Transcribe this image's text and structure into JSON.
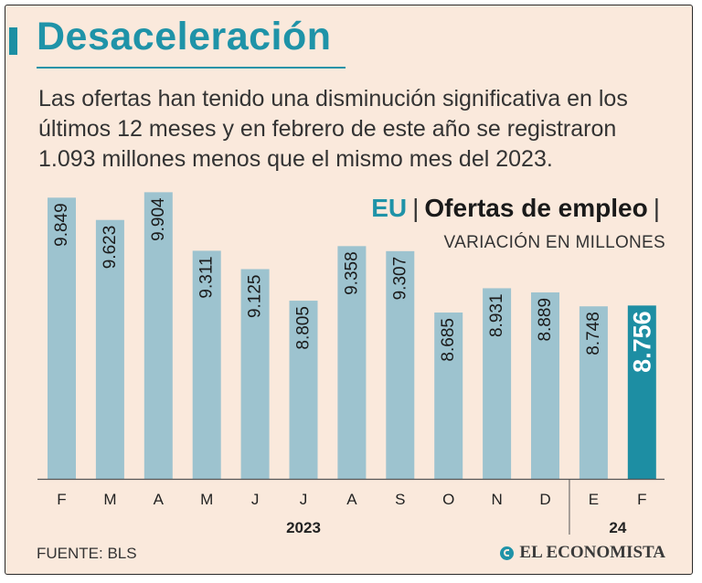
{
  "title": "Desaceleración",
  "intro": "Las ofertas han tenido una disminución significativa en los últimos 12 meses y en febrero de este año se registraron 1.093 millones menos que el mismo mes del 2023.",
  "header": {
    "region": "EU",
    "sep": "|",
    "label": "Ofertas de empleo",
    "trail": "|"
  },
  "subtitle": "VARIACIÓN EN MILLONES",
  "source": "FUENTE: BLS",
  "brand": "EL ECONOMISTA",
  "colors": {
    "bar": "#9dc3cf",
    "highlight": "#1d8ea3",
    "accent": "#1f93a8",
    "background": "#fae9dc"
  },
  "chart_data": {
    "type": "bar",
    "title": "Ofertas de empleo",
    "ylabel": "Variación en millones",
    "categories": [
      "F",
      "M",
      "A",
      "M",
      "J",
      "J",
      "A",
      "S",
      "O",
      "N",
      "D",
      "E",
      "F"
    ],
    "values": [
      9.849,
      9.623,
      9.904,
      9.311,
      9.125,
      8.805,
      9.358,
      9.307,
      8.685,
      8.931,
      8.889,
      8.748,
      8.756
    ],
    "labels": [
      "9.849",
      "9.623",
      "9.904",
      "9.311",
      "9.125",
      "8.805",
      "9.358",
      "9.307",
      "8.685",
      "8.931",
      "8.889",
      "8.748",
      "8.756"
    ],
    "highlight_index": 12,
    "year_groups": [
      {
        "label": "2023",
        "from": 0,
        "to": 10
      },
      {
        "label": "24",
        "from": 11,
        "to": 12
      }
    ],
    "ylim": [
      7.0,
      10.0
    ]
  }
}
